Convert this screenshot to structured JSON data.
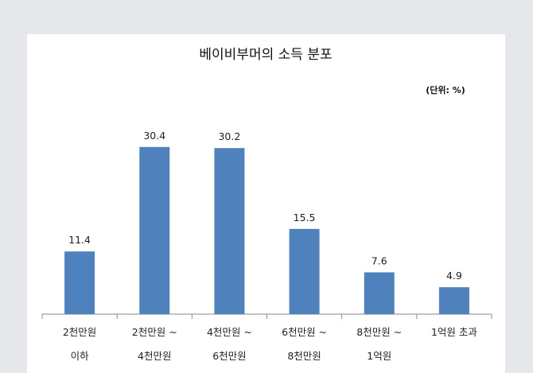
{
  "chart_data": {
    "type": "bar",
    "title": "베이비부머의 소득 분포",
    "unit_note": "(단위: %)",
    "categories": [
      [
        "2천만원",
        "이하"
      ],
      [
        "2천만원 ~",
        "4천만원"
      ],
      [
        "4천만원 ~",
        "6천만원"
      ],
      [
        "6천만원 ~",
        "8천만원"
      ],
      [
        "8천만원 ~",
        "1억원"
      ],
      [
        "1억원 초과"
      ]
    ],
    "values": [
      11.4,
      30.4,
      30.2,
      15.5,
      7.6,
      4.9
    ],
    "value_labels": [
      "11.4",
      "30.4",
      "30.2",
      "15.5",
      "7.6",
      "4.9"
    ],
    "ylim": [
      0,
      35
    ],
    "bar_color": "#4f81bd",
    "grid": false,
    "legend": "none"
  }
}
